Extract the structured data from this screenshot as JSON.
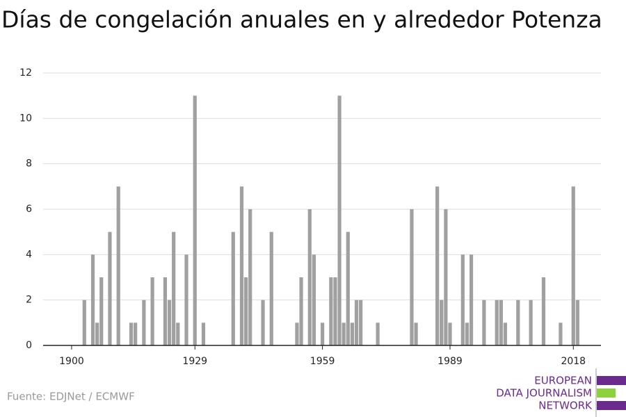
{
  "chart_data": {
    "type": "bar",
    "title": "Días de congelación anuales en y alrededor Potenza",
    "source": "Fuente: EDJNet / ECMWF",
    "logo": [
      "EUROPEAN",
      "DATA JOURNALISM",
      "NETWORK"
    ],
    "color": "#a0a0a0",
    "x": [
      1903,
      1905,
      1906,
      1907,
      1909,
      1911,
      1914,
      1915,
      1917,
      1919,
      1922,
      1923,
      1924,
      1925,
      1927,
      1929,
      1931,
      1938,
      1940,
      1941,
      1942,
      1945,
      1947,
      1953,
      1954,
      1956,
      1957,
      1959,
      1961,
      1962,
      1963,
      1964,
      1965,
      1966,
      1967,
      1968,
      1972,
      1980,
      1981,
      1986,
      1987,
      1988,
      1989,
      1992,
      1993,
      1994,
      1997,
      2000,
      2001,
      2002,
      2005,
      2008,
      2011,
      2015,
      2018,
      2019
    ],
    "values": [
      2,
      4,
      1,
      3,
      5,
      7,
      1,
      1,
      2,
      3,
      3,
      2,
      5,
      1,
      4,
      11,
      1,
      5,
      7,
      3,
      6,
      2,
      5,
      1,
      3,
      6,
      4,
      1,
      3,
      3,
      11,
      1,
      5,
      1,
      2,
      2,
      1,
      6,
      1,
      7,
      2,
      6,
      1,
      4,
      1,
      4,
      2,
      2,
      2,
      1,
      2,
      2,
      3,
      1,
      7,
      2
    ],
    "xlim": [
      1893.3,
      2024.5
    ],
    "xticks": [
      1900,
      1929,
      1959,
      1989,
      2018
    ],
    "ylim": [
      0,
      12
    ],
    "yticks": [
      0,
      2,
      4,
      6,
      8,
      10,
      12
    ],
    "grid": true
  }
}
